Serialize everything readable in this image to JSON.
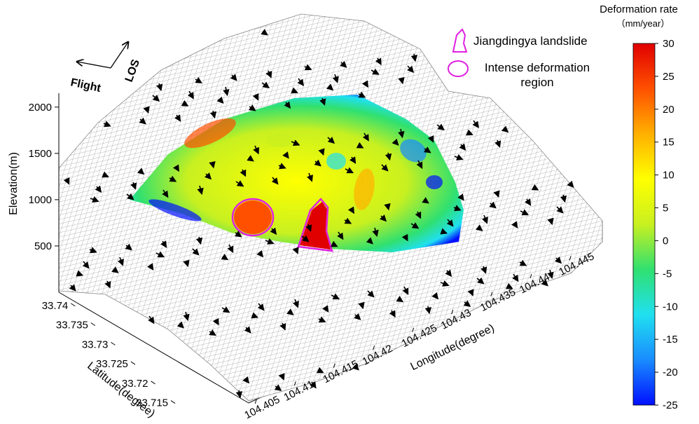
{
  "chart_data": {
    "type": "surface3d",
    "xlabel": "Longitude(degree)",
    "ylabel": "Latitude(degree)",
    "zlabel": "Elevation(m)",
    "xlim": [
      104.404,
      104.449
    ],
    "xticks": [
      104.405,
      104.41,
      104.415,
      104.42,
      104.425,
      104.43,
      104.435,
      104.44,
      104.445
    ],
    "ylim": [
      33.7115,
      33.7425
    ],
    "yticks": [
      33.715,
      33.72,
      33.725,
      33.73,
      33.735,
      33.74
    ],
    "zlim": [
      0,
      2150
    ],
    "zticks": [
      500,
      1000,
      1500,
      2000
    ],
    "colorbar": {
      "title": "Deformation rate",
      "unit": "（mm/year）",
      "lim": [
        -25,
        30
      ],
      "ticks": [
        -25,
        -20,
        -15,
        -10,
        -5,
        0,
        5,
        10,
        15,
        20,
        25,
        30
      ],
      "colors": [
        "#0010ff",
        "#1a8cff",
        "#20e0f0",
        "#30e070",
        "#c8f020",
        "#ffff00",
        "#ffb000",
        "#ff5000",
        "#e00000"
      ]
    },
    "legend": [
      {
        "name": "Jiangdingya landslide",
        "color": "#e020e0"
      },
      {
        "name": "Intense deformation region",
        "color": "#e020e0"
      }
    ],
    "annotations": {
      "flight": "Flight",
      "los": "LOS"
    }
  }
}
